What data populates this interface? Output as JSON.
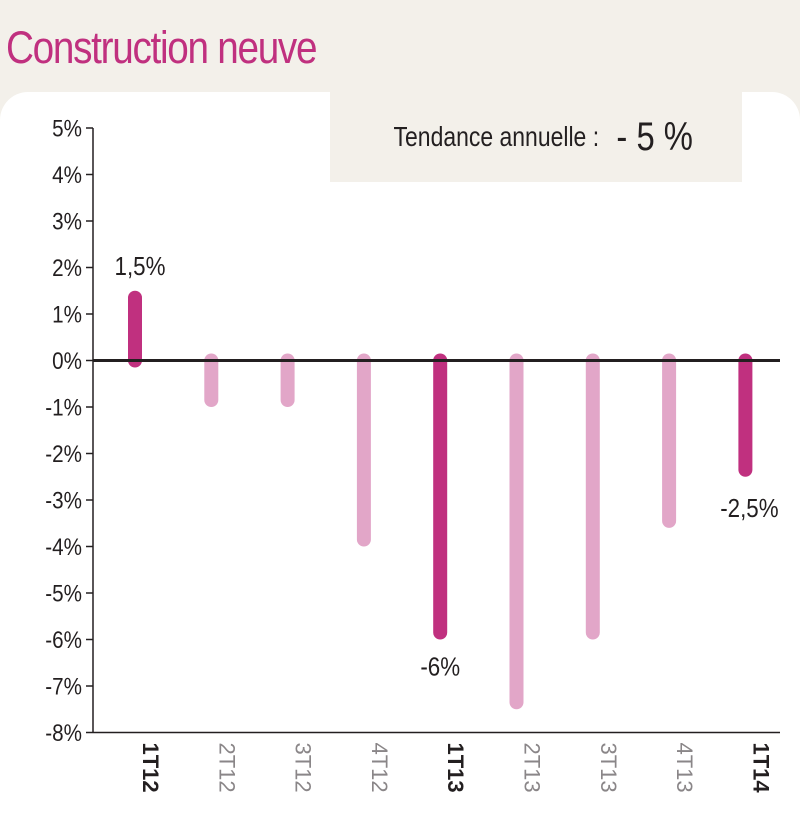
{
  "header": {
    "title": "Construction neuve"
  },
  "trend": {
    "label": "Tendance annuelle :",
    "value": "- 5 %"
  },
  "colors": {
    "accent": "#c0307f",
    "light": "#e2a6c8",
    "axis": "#231f20"
  },
  "chart_data": {
    "type": "bar",
    "title": "Construction neuve",
    "categories": [
      "1T12",
      "2T12",
      "3T12",
      "4T12",
      "1T13",
      "2T13",
      "3T13",
      "4T13",
      "1T14"
    ],
    "values": [
      1.5,
      -1,
      -1,
      -4,
      -6,
      -7.5,
      -6,
      -3.6,
      -2.5
    ],
    "highlighted": [
      "1T12",
      "1T13",
      "1T14"
    ],
    "data_labels": [
      {
        "category": "1T12",
        "text": "1,5%"
      },
      {
        "category": "1T13",
        "text": "-6%"
      },
      {
        "category": "1T14",
        "text": "-2,5%"
      }
    ],
    "yticks": [
      "5%",
      "4%",
      "3%",
      "2%",
      "1%",
      "0%",
      "-1%",
      "-2%",
      "-3%",
      "-4%",
      "-5%",
      "-6%",
      "-7%",
      "-8%"
    ],
    "ylim": [
      -8,
      5
    ],
    "xlabel": "",
    "ylabel": "",
    "grid": false,
    "legend": "none"
  }
}
